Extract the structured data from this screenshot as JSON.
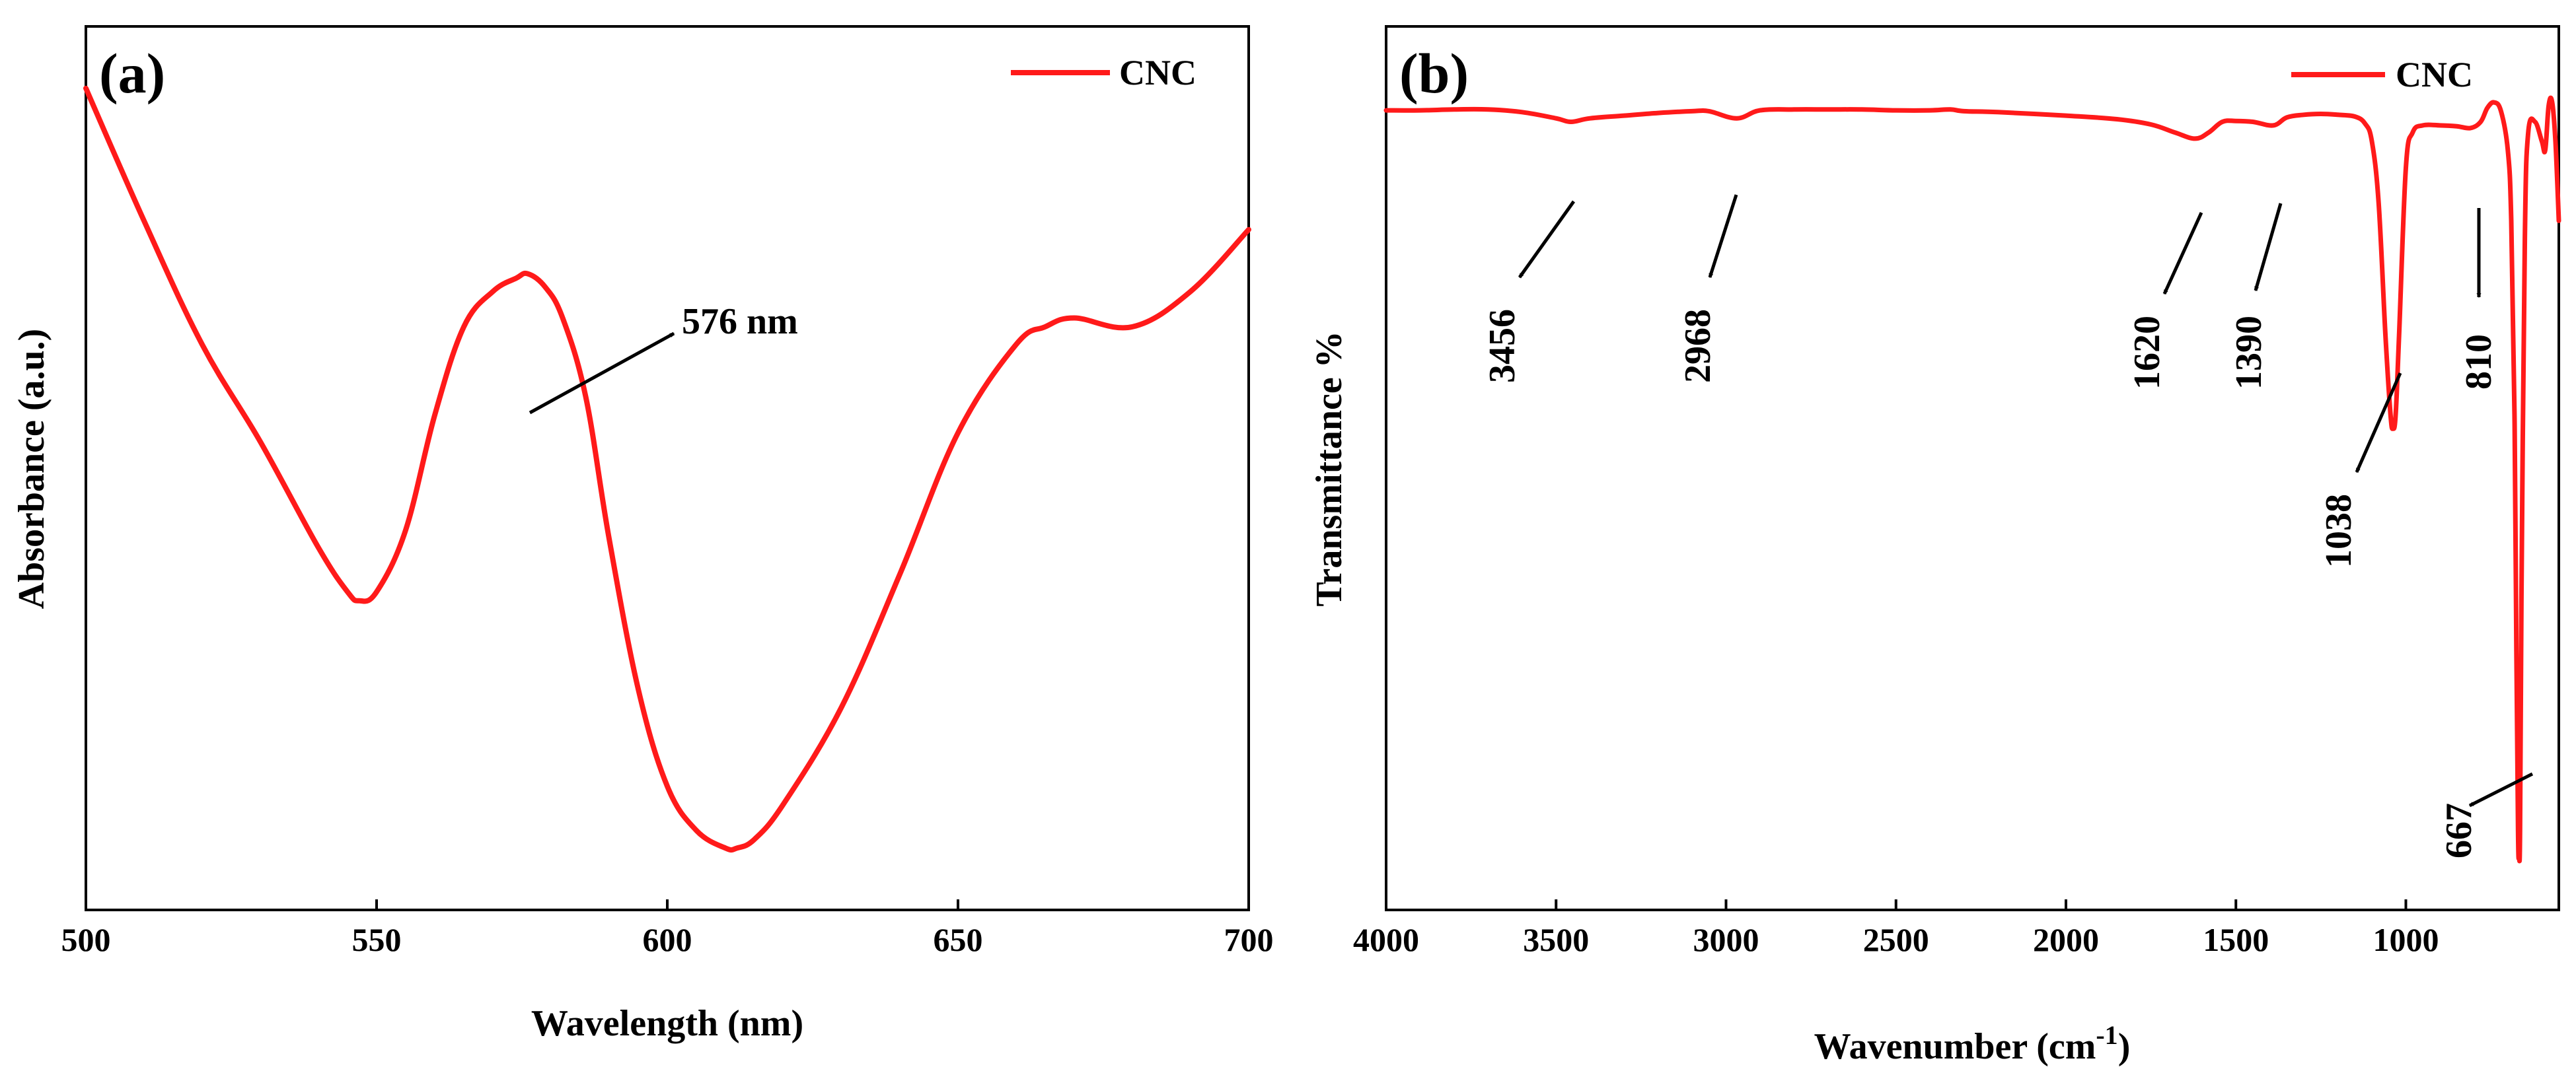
{
  "colors": {
    "line": "#ff1a1a",
    "axis": "#000000",
    "background": "#ffffff"
  },
  "chart_data": [
    {
      "type": "line",
      "panel_label": "(a)",
      "xlabel": "Wavelength (nm)",
      "ylabel": "Absorbance (a.u.)",
      "xlim": [
        500,
        700
      ],
      "ylim": [
        0,
        1
      ],
      "xticks": [
        500,
        550,
        600,
        650,
        700
      ],
      "xtick_labels": [
        "500",
        "550",
        "600",
        "650",
        "700"
      ],
      "yticks_shown": false,
      "legend": {
        "label": "CNC",
        "position": "top-right"
      },
      "series": [
        {
          "name": "CNC",
          "x": [
            500,
            510,
            520,
            530,
            540,
            545,
            547,
            550,
            555,
            560,
            565,
            570,
            574,
            576,
            579,
            582,
            586,
            590,
            595,
            600,
            605,
            610,
            612,
            615,
            620,
            630,
            640,
            650,
            660,
            665,
            670,
            680,
            690,
            700
          ],
          "y": [
            0.93,
            0.78,
            0.64,
            0.53,
            0.41,
            0.36,
            0.35,
            0.36,
            0.43,
            0.56,
            0.66,
            0.7,
            0.715,
            0.72,
            0.705,
            0.67,
            0.58,
            0.42,
            0.25,
            0.14,
            0.09,
            0.07,
            0.07,
            0.08,
            0.12,
            0.23,
            0.38,
            0.54,
            0.64,
            0.66,
            0.67,
            0.66,
            0.7,
            0.77
          ]
        }
      ],
      "annotations": [
        {
          "text": "576 nm",
          "x": 576,
          "y": 0.72
        }
      ]
    },
    {
      "type": "line",
      "panel_label": "(b)",
      "xlabel": "Wavenumber (cm",
      "xlabel_superscript": "-1",
      "xlabel_close": ")",
      "ylabel": "Transmittance %",
      "xlim": [
        4000,
        550
      ],
      "ylim": [
        0,
        1
      ],
      "xticks": [
        4000,
        3500,
        3000,
        2500,
        2000,
        1500,
        1000
      ],
      "xtick_labels": [
        "4000",
        "3500",
        "3000",
        "2500",
        "2000",
        "1500",
        "1000"
      ],
      "yticks_shown": false,
      "legend": {
        "label": "CNC",
        "position": "top-right"
      },
      "series": [
        {
          "name": "CNC",
          "x": [
            4000,
            3900,
            3800,
            3700,
            3600,
            3500,
            3456,
            3400,
            3300,
            3200,
            3100,
            3050,
            2968,
            2900,
            2800,
            2700,
            2600,
            2500,
            2400,
            2340,
            2300,
            2200,
            2000,
            1850,
            1750,
            1680,
            1620,
            1580,
            1540,
            1500,
            1450,
            1390,
            1350,
            1300,
            1250,
            1200,
            1150,
            1120,
            1100,
            1080,
            1060,
            1045,
            1038,
            1030,
            1020,
            1000,
            980,
            950,
            900,
            850,
            810,
            780,
            760,
            740,
            720,
            700,
            690,
            680,
            675,
            670,
            667,
            664,
            660,
            650,
            640,
            620,
            600,
            590,
            580,
            570,
            560,
            550
          ],
          "y": [
            0.905,
            0.905,
            0.906,
            0.906,
            0.903,
            0.896,
            0.892,
            0.896,
            0.899,
            0.902,
            0.904,
            0.904,
            0.896,
            0.905,
            0.906,
            0.906,
            0.906,
            0.905,
            0.905,
            0.906,
            0.904,
            0.903,
            0.899,
            0.895,
            0.889,
            0.88,
            0.873,
            0.88,
            0.892,
            0.893,
            0.892,
            0.888,
            0.897,
            0.9,
            0.901,
            0.9,
            0.898,
            0.89,
            0.87,
            0.8,
            0.65,
            0.56,
            0.545,
            0.56,
            0.65,
            0.84,
            0.88,
            0.888,
            0.888,
            0.887,
            0.885,
            0.892,
            0.908,
            0.914,
            0.904,
            0.86,
            0.78,
            0.55,
            0.3,
            0.09,
            0.06,
            0.09,
            0.35,
            0.76,
            0.88,
            0.892,
            0.87,
            0.86,
            0.91,
            0.915,
            0.87,
            0.78
          ]
        }
      ],
      "annotations": [
        {
          "text": "3456",
          "x": 3456
        },
        {
          "text": "2968",
          "x": 2968
        },
        {
          "text": "1620",
          "x": 1620
        },
        {
          "text": "1390",
          "x": 1390
        },
        {
          "text": "1038",
          "x": 1038
        },
        {
          "text": "810",
          "x": 810
        },
        {
          "text": "667",
          "x": 667
        }
      ]
    }
  ]
}
